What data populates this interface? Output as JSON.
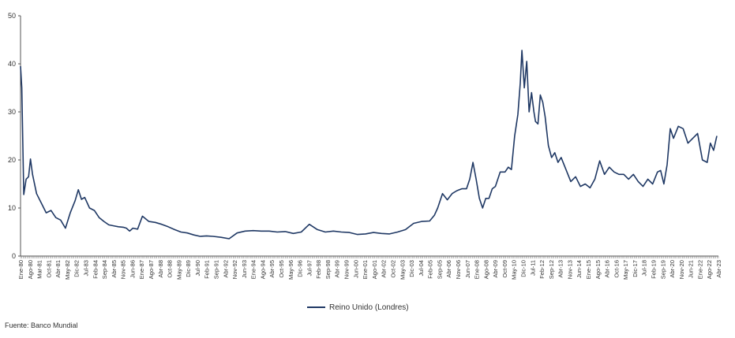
{
  "chart_data": {
    "type": "line",
    "title": "",
    "xlabel": "",
    "ylabel": "",
    "ylim": [
      0,
      50
    ],
    "yticks": [
      "0",
      "10",
      "20",
      "30",
      "40",
      "50"
    ],
    "xticks": [
      "Ene-80",
      "Ago-80",
      "Mar-81",
      "Oct-81",
      "Abr-81",
      "May-82",
      "Dic-82",
      "Jul-83",
      "Feb-84",
      "Sep-84",
      "Abr-85",
      "Nov-85",
      "Jun-86",
      "Ene-87",
      "Ago-87",
      "Abr-88",
      "Oct-88",
      "May-89",
      "Dic-89",
      "Jul-90",
      "Feb-91",
      "Sep-91",
      "Abr-92",
      "Nov-92",
      "Jun-93",
      "Ene-94",
      "Ago-94",
      "Abr-95",
      "Oct-95",
      "May-96",
      "Dic-96",
      "Jul-97",
      "Feb-98",
      "Sep-98",
      "Abr-99",
      "Nov-99",
      "Jun-00",
      "Ene-01",
      "Ago-01",
      "Abr-02",
      "Oct-02",
      "May-03",
      "Dic-03",
      "Jul-04",
      "Feb-05",
      "Sep-05",
      "Abr-06",
      "Nov-06",
      "Jun-07",
      "Ene-08",
      "Ago-08",
      "Abr-09",
      "Oct-09",
      "May-10",
      "Dic-10",
      "Jul-11",
      "Feb-12",
      "Sep-12",
      "Abr-13",
      "Nov-13",
      "Jun-14",
      "Ene-15",
      "Ago-15",
      "Abr-16",
      "Oct-16",
      "May-17",
      "Dic-17",
      "Jul-18",
      "Feb-19",
      "Sep-19",
      "Abr-20",
      "Nov-20",
      "Jun-21",
      "Ene-22",
      "Ago-22",
      "Abr-23"
    ],
    "series": [
      {
        "name": "Reino Unido (Londres)",
        "color": "#1f3864",
        "x": [
          1980.0,
          1980.08,
          1980.2,
          1980.35,
          1980.5,
          1980.62,
          1980.75,
          1981.0,
          1981.3,
          1981.6,
          1981.9,
          1982.2,
          1982.5,
          1982.8,
          1983.1,
          1983.4,
          1983.6,
          1983.8,
          1984.0,
          1984.3,
          1984.6,
          1984.9,
          1985.2,
          1985.5,
          1985.8,
          1986.1,
          1986.4,
          1986.6,
          1986.8,
          1987.0,
          1987.3,
          1987.6,
          1988.0,
          1988.4,
          1988.8,
          1989.2,
          1989.6,
          1990.0,
          1990.4,
          1990.8,
          1991.2,
          1991.6,
          1992.0,
          1992.5,
          1993.0,
          1993.5,
          1994.0,
          1994.5,
          1995.0,
          1995.5,
          1996.0,
          1996.5,
          1997.0,
          1997.5,
          1998.0,
          1998.5,
          1999.0,
          1999.5,
          2000.0,
          2000.5,
          2001.0,
          2001.5,
          2002.0,
          2002.5,
          2003.0,
          2003.5,
          2004.0,
          2004.5,
          2005.0,
          2005.5,
          2005.8,
          2006.0,
          2006.3,
          2006.6,
          2006.9,
          2007.2,
          2007.5,
          2007.8,
          2008.0,
          2008.2,
          2008.4,
          2008.6,
          2008.8,
          2009.0,
          2009.2,
          2009.4,
          2009.6,
          2009.9,
          2010.2,
          2010.4,
          2010.6,
          2010.8,
          2011.0,
          2011.15,
          2011.25,
          2011.4,
          2011.55,
          2011.7,
          2011.85,
          2012.0,
          2012.1,
          2012.25,
          2012.4,
          2012.55,
          2012.7,
          2012.9,
          2013.1,
          2013.3,
          2013.5,
          2013.7,
          2014.0,
          2014.3,
          2014.6,
          2014.9,
          2015.2,
          2015.5,
          2015.8,
          2016.1,
          2016.4,
          2016.7,
          2017.0,
          2017.3,
          2017.6,
          2017.9,
          2018.2,
          2018.5,
          2018.8,
          2019.1,
          2019.4,
          2019.7,
          2019.9,
          2020.1,
          2020.3,
          2020.5,
          2020.7,
          2021.0,
          2021.3,
          2021.6,
          2021.9,
          2022.2,
          2022.5,
          2022.8,
          2023.0,
          2023.2,
          2023.4
        ],
        "y": [
          39.5,
          35,
          12.8,
          16,
          16.5,
          20.2,
          17,
          13,
          11,
          9,
          9.5,
          8,
          7.5,
          5.8,
          9,
          11.5,
          13.8,
          11.8,
          12.2,
          10,
          9.5,
          8,
          7.2,
          6.5,
          6.3,
          6.1,
          6,
          5.8,
          5.2,
          5.8,
          5.6,
          8.3,
          7.2,
          7,
          6.6,
          6.1,
          5.5,
          5,
          4.8,
          4.4,
          4.1,
          4.2,
          4.1,
          3.9,
          3.6,
          4.8,
          5.2,
          5.3,
          5.2,
          5.2,
          5,
          5.1,
          4.7,
          5,
          6.6,
          5.5,
          5,
          5.2,
          5,
          4.9,
          4.5,
          4.6,
          4.9,
          4.7,
          4.6,
          5,
          5.5,
          6.8,
          7.2,
          7.3,
          8.5,
          10,
          13,
          11.7,
          13,
          13.6,
          14,
          14,
          16,
          19.5,
          16,
          12,
          10,
          12,
          12,
          14,
          14.5,
          17.5,
          17.5,
          18.5,
          18,
          25,
          29.5,
          36,
          42.8,
          35,
          40.5,
          30,
          34,
          30,
          28,
          27.5,
          33.5,
          32,
          29,
          23,
          20.5,
          21.5,
          19.5,
          20.5,
          18,
          15.5,
          16.5,
          14.5,
          15,
          14.2,
          16,
          19.8,
          17,
          18.5,
          17.5,
          17,
          17,
          16,
          17,
          15.5,
          14.5,
          16,
          15,
          17.5,
          17.8,
          15,
          19,
          26.5,
          24.5,
          27,
          26.5,
          23.5,
          24.5,
          25.5,
          20,
          19.5,
          23.5,
          22,
          25
        ]
      }
    ],
    "legend": {
      "placement": "bottom-center",
      "label": "Reino Unido (Londres)"
    },
    "grid": false
  },
  "source": "Fuente: Banco Mundial"
}
